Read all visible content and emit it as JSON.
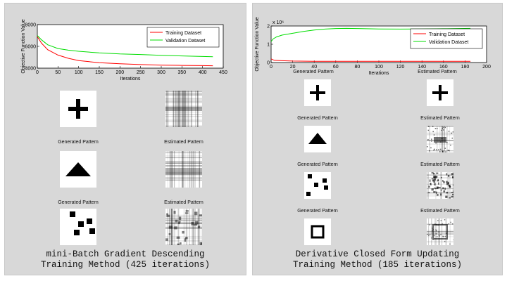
{
  "left": {
    "caption_line1": "mini-Batch Gradient Descending",
    "caption_line2": "Training Method (425 iterations)",
    "pattern_labels": {
      "generated": "Generated Pattern",
      "estimated": "Estimated Pattern"
    },
    "patterns": [
      "plus-pattern",
      "triangle-pattern",
      "squares-pattern"
    ]
  },
  "right": {
    "caption_line1": "Derivative Closed Form Updating",
    "caption_line2": "Training Method (185 iterations)",
    "pattern_labels": {
      "generated": "Generated Pattern",
      "estimated": "Estimated Pattern"
    },
    "patterns": [
      "plus-pattern",
      "triangle-pattern",
      "squares-pattern",
      "hollow-square-pattern"
    ]
  },
  "colors": {
    "training": "#ff0000",
    "validation": "#00dd00",
    "panel": "#d8d8d8"
  },
  "chart_data": [
    {
      "type": "line",
      "title": "",
      "xlabel": "Iterations",
      "ylabel": "Objective Function Value",
      "xlim": [
        0,
        450
      ],
      "ylim": [
        4000,
        8000
      ],
      "xticks": [
        0,
        50,
        100,
        150,
        200,
        250,
        300,
        350,
        400,
        450
      ],
      "yticks": [
        4000,
        6000,
        8000
      ],
      "legend": "top-right",
      "series": [
        {
          "name": "Training Dataset",
          "color": "#ff0000",
          "x": [
            0,
            10,
            25,
            50,
            75,
            100,
            150,
            200,
            250,
            300,
            350,
            400,
            425
          ],
          "y": [
            6900,
            6300,
            5700,
            5200,
            4900,
            4700,
            4500,
            4400,
            4330,
            4280,
            4250,
            4230,
            4220
          ]
        },
        {
          "name": "Validation Dataset",
          "color": "#00dd00",
          "x": [
            0,
            10,
            25,
            50,
            75,
            100,
            150,
            200,
            250,
            300,
            350,
            400,
            425
          ],
          "y": [
            7000,
            6600,
            6150,
            5800,
            5650,
            5550,
            5400,
            5300,
            5250,
            5180,
            5120,
            5070,
            5050
          ]
        }
      ]
    },
    {
      "type": "line",
      "title": "",
      "xlabel": "Iterations",
      "ylabel": "Objective Function Value",
      "exponent_label": "x 10⁶",
      "xlim": [
        0,
        200
      ],
      "ylim": [
        0,
        2
      ],
      "xticks": [
        0,
        20,
        40,
        60,
        80,
        100,
        120,
        140,
        160,
        180,
        200
      ],
      "yticks": [
        0,
        1,
        2
      ],
      "legend": "top-right",
      "series": [
        {
          "name": "Training Dataset",
          "color": "#ff0000",
          "x": [
            0,
            3,
            10,
            20,
            40,
            60,
            80,
            100,
            120,
            140,
            160,
            185
          ],
          "y": [
            0.2,
            0.12,
            0.1,
            0.08,
            0.07,
            0.07,
            0.07,
            0.07,
            0.07,
            0.07,
            0.07,
            0.07
          ]
        },
        {
          "name": "Validation Dataset",
          "color": "#00dd00",
          "x": [
            0,
            2,
            5,
            10,
            20,
            30,
            40,
            50,
            60,
            70,
            80,
            100,
            120,
            140,
            160,
            185
          ],
          "y": [
            1.15,
            1.3,
            1.4,
            1.5,
            1.6,
            1.7,
            1.78,
            1.83,
            1.86,
            1.87,
            1.86,
            1.84,
            1.83,
            1.84,
            1.85,
            1.87
          ]
        }
      ]
    }
  ]
}
